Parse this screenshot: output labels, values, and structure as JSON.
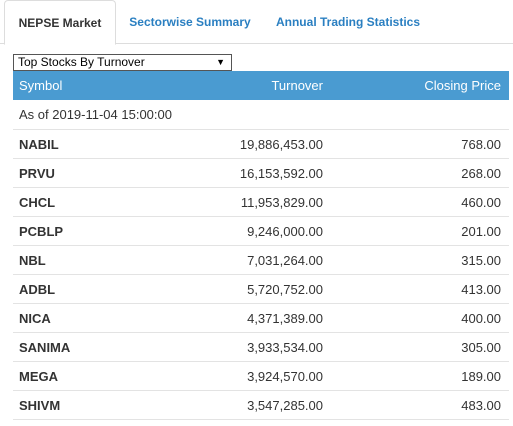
{
  "tabs": [
    {
      "label": "NEPSE Market",
      "active": true
    },
    {
      "label": "Sectorwise Summary",
      "active": false
    },
    {
      "label": "Annual Trading Statistics",
      "active": false
    }
  ],
  "selector": {
    "selected": "Top Stocks By Turnover"
  },
  "table": {
    "headers": {
      "symbol": "Symbol",
      "turnover": "Turnover",
      "closing_price": "Closing Price"
    },
    "as_of": "As of 2019-11-04 15:00:00",
    "rows": [
      {
        "symbol": "NABIL",
        "turnover": "19,886,453.00",
        "closing_price": "768.00"
      },
      {
        "symbol": "PRVU",
        "turnover": "16,153,592.00",
        "closing_price": "268.00"
      },
      {
        "symbol": "CHCL",
        "turnover": "11,953,829.00",
        "closing_price": "460.00"
      },
      {
        "symbol": "PCBLP",
        "turnover": "9,246,000.00",
        "closing_price": "201.00"
      },
      {
        "symbol": "NBL",
        "turnover": "7,031,264.00",
        "closing_price": "315.00"
      },
      {
        "symbol": "ADBL",
        "turnover": "5,720,752.00",
        "closing_price": "413.00"
      },
      {
        "symbol": "NICA",
        "turnover": "4,371,389.00",
        "closing_price": "400.00"
      },
      {
        "symbol": "SANIMA",
        "turnover": "3,933,534.00",
        "closing_price": "305.00"
      },
      {
        "symbol": "MEGA",
        "turnover": "3,924,570.00",
        "closing_price": "189.00"
      },
      {
        "symbol": "SHIVM",
        "turnover": "3,547,285.00",
        "closing_price": "483.00"
      }
    ]
  },
  "colors": {
    "header_bg": "#4a9bd1",
    "tab_link": "#2a7fc1"
  },
  "icons": {
    "dropdown": "dropdown-caret-icon"
  }
}
